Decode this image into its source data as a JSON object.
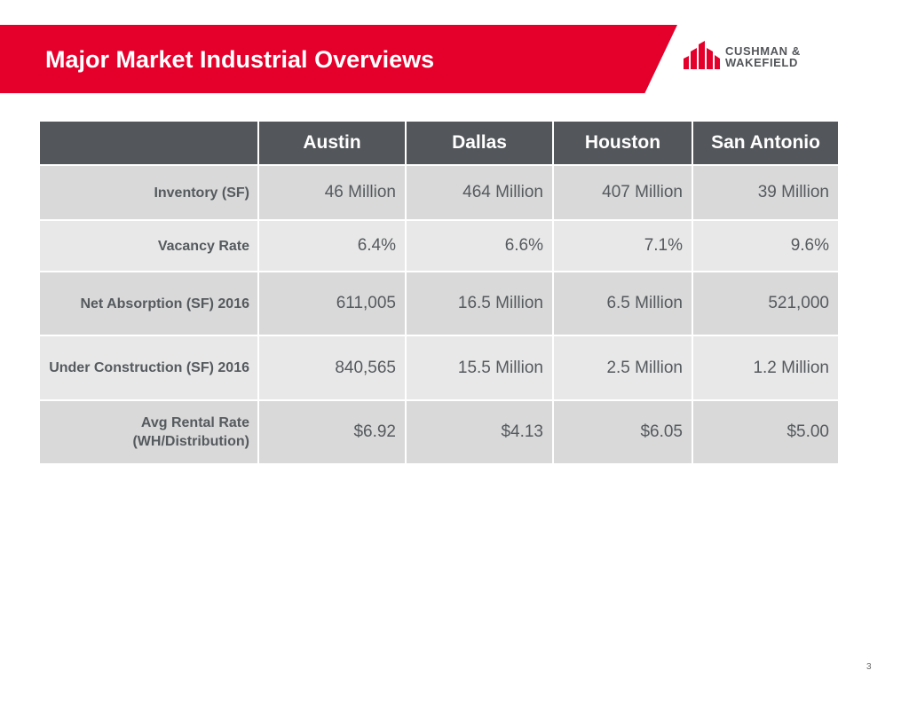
{
  "slide": {
    "title": "Major Market Industrial Overviews",
    "page_number": "3"
  },
  "logo": {
    "line1": "CUSHMAN &",
    "line2": "WAKEFIELD"
  },
  "colors": {
    "brand_red": "#e4002b",
    "header_dark": "#53565a",
    "row_dark": "#d9d9d9",
    "row_light": "#e8e8e8",
    "label_text": "#555a5e"
  },
  "table": {
    "columns": [
      "",
      "Austin",
      "Dallas",
      "Houston",
      "San Antonio"
    ],
    "rows": [
      {
        "label": "Inventory (SF)",
        "values": [
          "46 Million",
          "464 Million",
          "407 Million",
          "39 Million"
        ]
      },
      {
        "label": "Vacancy Rate",
        "values": [
          "6.4%",
          "6.6%",
          "7.1%",
          "9.6%"
        ]
      },
      {
        "label": "Net Absorption (SF) 2016",
        "values": [
          "611,005",
          "16.5 Million",
          "6.5 Million",
          "521,000"
        ]
      },
      {
        "label": "Under Construction (SF) 2016",
        "values": [
          "840,565",
          "15.5 Million",
          "2.5 Million",
          "1.2 Million"
        ]
      },
      {
        "label": "Avg Rental Rate (WH/Distribution)",
        "values": [
          "$6.92",
          "$4.13",
          "$6.05",
          "$5.00"
        ]
      }
    ]
  }
}
